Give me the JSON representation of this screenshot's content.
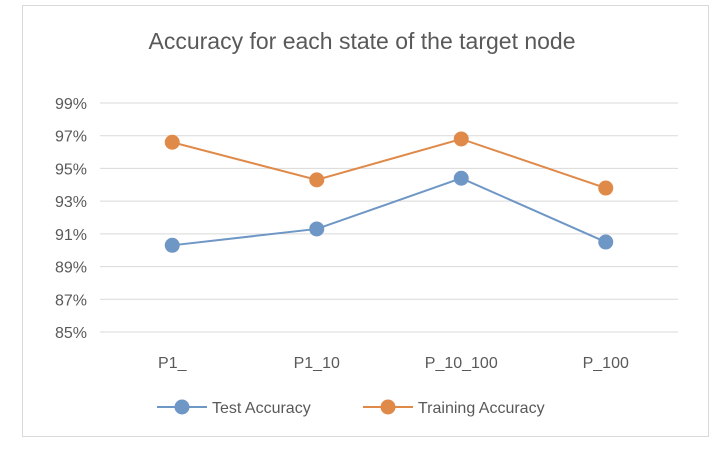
{
  "colors": {
    "test": "#6f97c6",
    "training": "#e08a4a",
    "grid": "#d9d9d9",
    "text": "#595959"
  },
  "chart_data": {
    "type": "line",
    "title": "Accuracy for each state of the target node",
    "xlabel": "",
    "ylabel": "",
    "categories": [
      "P1_",
      "P1_10",
      "P_10_100",
      "P_100"
    ],
    "ylim": [
      85,
      99
    ],
    "yticks": [
      85,
      87,
      89,
      91,
      93,
      95,
      97,
      99
    ],
    "ytick_labels": [
      "85%",
      "87%",
      "89%",
      "91%",
      "93%",
      "95%",
      "97%",
      "99%"
    ],
    "grid": true,
    "legend_position": "bottom",
    "series": [
      {
        "name": "Test Accuracy",
        "color_key": "test",
        "values": [
          90.3,
          91.3,
          94.4,
          90.5
        ]
      },
      {
        "name": "Training Accuracy",
        "color_key": "training",
        "values": [
          96.6,
          94.3,
          96.8,
          93.8
        ]
      }
    ]
  }
}
